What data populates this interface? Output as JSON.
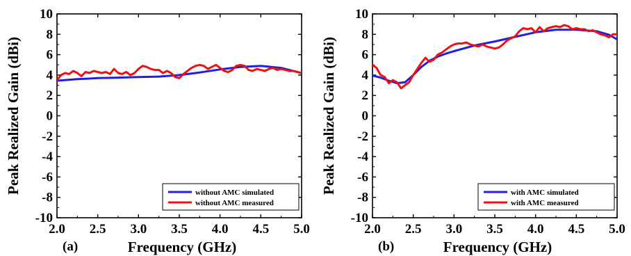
{
  "colors": {
    "simulated": "#1f1fe0",
    "measured": "#ee1111",
    "axis": "#000000"
  },
  "chart_data": [
    {
      "type": "line",
      "panel_label": "(a)",
      "xlabel": "Frequency (GHz)",
      "ylabel": "Peak Realized Gain (dBi)",
      "xlim": [
        2.0,
        5.0
      ],
      "ylim": [
        -10,
        10
      ],
      "xticks": [
        "2.0",
        "2.5",
        "3.0",
        "3.5",
        "4.0",
        "4.5",
        "5.0"
      ],
      "yticks": [
        "10",
        "8",
        "6",
        "4",
        "2",
        "0",
        "-2",
        "-4",
        "-6",
        "-8",
        "-10"
      ],
      "grid": false,
      "legend_position": "bottom-right",
      "series": [
        {
          "name": "without AMC simulated",
          "color": "#1f1fe0",
          "x": [
            2.0,
            2.25,
            2.5,
            2.75,
            3.0,
            3.25,
            3.5,
            3.75,
            4.0,
            4.25,
            4.5,
            4.75,
            5.0
          ],
          "y": [
            3.45,
            3.6,
            3.7,
            3.75,
            3.8,
            3.85,
            4.0,
            4.25,
            4.55,
            4.8,
            4.9,
            4.7,
            4.2
          ]
        },
        {
          "name": "without AMC measured",
          "color": "#ee1111",
          "x": [
            2.0,
            2.05,
            2.1,
            2.15,
            2.2,
            2.25,
            2.3,
            2.35,
            2.4,
            2.45,
            2.5,
            2.55,
            2.6,
            2.65,
            2.7,
            2.75,
            2.8,
            2.85,
            2.9,
            2.95,
            3.0,
            3.05,
            3.1,
            3.15,
            3.2,
            3.25,
            3.3,
            3.35,
            3.4,
            3.45,
            3.5,
            3.55,
            3.6,
            3.65,
            3.7,
            3.75,
            3.8,
            3.85,
            3.9,
            3.95,
            4.0,
            4.05,
            4.1,
            4.15,
            4.2,
            4.25,
            4.3,
            4.35,
            4.4,
            4.45,
            4.5,
            4.55,
            4.6,
            4.65,
            4.7,
            4.75,
            4.8,
            4.85,
            4.9,
            4.95,
            5.0
          ],
          "y": [
            3.5,
            4.0,
            4.2,
            4.1,
            4.4,
            4.2,
            3.9,
            4.3,
            4.2,
            4.4,
            4.3,
            4.2,
            4.3,
            4.1,
            4.6,
            4.2,
            4.1,
            4.3,
            4.0,
            4.2,
            4.6,
            4.9,
            4.8,
            4.6,
            4.5,
            4.5,
            4.2,
            4.4,
            4.2,
            3.8,
            3.7,
            4.1,
            4.4,
            4.7,
            4.9,
            5.0,
            4.9,
            4.6,
            4.8,
            5.0,
            4.7,
            4.4,
            4.3,
            4.5,
            4.9,
            5.0,
            4.9,
            4.5,
            4.4,
            4.6,
            4.5,
            4.4,
            4.6,
            4.7,
            4.5,
            4.6,
            4.5,
            4.4,
            4.4,
            4.3,
            4.2
          ]
        }
      ]
    },
    {
      "type": "line",
      "panel_label": "(b)",
      "xlabel": "Frequency (GHz)",
      "ylabel": "Peak Realized Gain (dBi)",
      "xlim": [
        2.0,
        5.0
      ],
      "ylim": [
        -10,
        10
      ],
      "xticks": [
        "2.0",
        "2.5",
        "3.0",
        "3.5",
        "4.0",
        "4.5",
        "5.0"
      ],
      "yticks": [
        "10",
        "8",
        "6",
        "4",
        "2",
        "0",
        "-2",
        "-4",
        "-6",
        "-8",
        "-10"
      ],
      "grid": false,
      "legend_position": "bottom-right",
      "series": [
        {
          "name": "with AMC simulated",
          "color": "#1f1fe0",
          "x": [
            2.0,
            2.1,
            2.2,
            2.3,
            2.4,
            2.5,
            2.6,
            2.7,
            2.8,
            2.9,
            3.0,
            3.25,
            3.5,
            3.75,
            4.0,
            4.25,
            4.5,
            4.75,
            4.9,
            5.0
          ],
          "y": [
            3.95,
            3.75,
            3.45,
            3.2,
            3.3,
            4.0,
            4.8,
            5.4,
            5.8,
            6.1,
            6.35,
            6.9,
            7.3,
            7.75,
            8.2,
            8.45,
            8.45,
            8.3,
            7.95,
            7.5
          ]
        },
        {
          "name": "with AMC measured",
          "color": "#ee1111",
          "x": [
            2.0,
            2.05,
            2.1,
            2.15,
            2.2,
            2.25,
            2.3,
            2.35,
            2.4,
            2.45,
            2.5,
            2.55,
            2.6,
            2.65,
            2.7,
            2.75,
            2.8,
            2.85,
            2.9,
            2.95,
            3.0,
            3.05,
            3.1,
            3.15,
            3.2,
            3.25,
            3.3,
            3.35,
            3.4,
            3.45,
            3.5,
            3.55,
            3.6,
            3.65,
            3.7,
            3.75,
            3.8,
            3.85,
            3.9,
            3.95,
            4.0,
            4.05,
            4.1,
            4.15,
            4.2,
            4.25,
            4.3,
            4.35,
            4.4,
            4.45,
            4.5,
            4.55,
            4.6,
            4.65,
            4.7,
            4.75,
            4.8,
            4.85,
            4.9,
            4.95,
            5.0
          ],
          "y": [
            5.0,
            4.7,
            4.0,
            3.8,
            3.2,
            3.5,
            3.3,
            2.7,
            3.0,
            3.3,
            4.0,
            4.6,
            5.2,
            5.7,
            5.3,
            5.5,
            6.0,
            6.2,
            6.5,
            6.8,
            7.0,
            7.1,
            7.1,
            7.2,
            7.0,
            6.9,
            6.8,
            7.0,
            6.8,
            6.7,
            6.6,
            6.7,
            7.0,
            7.4,
            7.6,
            7.8,
            8.3,
            8.6,
            8.5,
            8.6,
            8.2,
            8.7,
            8.3,
            8.6,
            8.7,
            8.8,
            8.7,
            8.9,
            8.8,
            8.5,
            8.6,
            8.5,
            8.5,
            8.3,
            8.4,
            8.2,
            8.0,
            7.9,
            7.7,
            8.0,
            8.0
          ]
        }
      ]
    }
  ]
}
